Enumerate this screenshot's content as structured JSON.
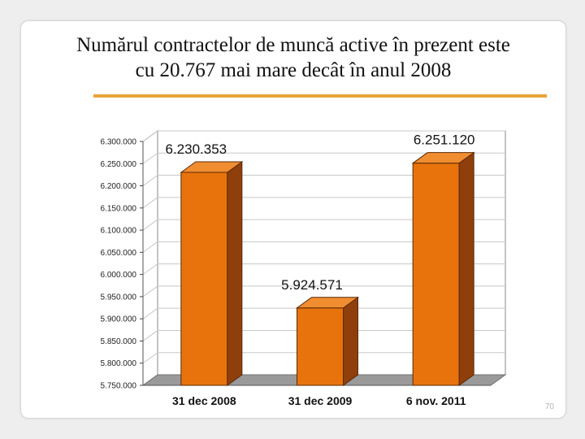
{
  "slide": {
    "title_line1": "Numărul contractelor de muncă active în prezent este",
    "title_line2": "cu 20.767 mai mare decât în anul 2008",
    "page_number": "70",
    "accent_color": "#e8a33a"
  },
  "chart_data": {
    "type": "bar",
    "title": "",
    "xlabel": "",
    "ylabel": "",
    "categories": [
      "31 dec 2008",
      "31 dec 2009",
      "6 nov. 2011"
    ],
    "values": [
      6230353,
      5924571,
      6251120
    ],
    "data_labels": [
      "6.230.353",
      "5.924.571",
      "6.251.120"
    ],
    "ylim": [
      5750000,
      6300000
    ],
    "yticks": [
      5750000,
      5800000,
      5850000,
      5900000,
      5950000,
      6000000,
      6050000,
      6100000,
      6150000,
      6200000,
      6250000,
      6300000
    ],
    "ytick_labels": [
      "5.750.000",
      "5.800.000",
      "5.850.000",
      "5.900.000",
      "5.950.000",
      "6.000.000",
      "6.050.000",
      "6.100.000",
      "6.150.000",
      "6.200.000",
      "6.250.000",
      "6.300.000"
    ],
    "grid": true,
    "style": "3d",
    "colors": {
      "bar_front": "#e8730c",
      "bar_side": "#8f3f0b",
      "bar_top": "#f08d30",
      "floor": "#9a9a9a",
      "grid": "#c8c8c8"
    }
  }
}
